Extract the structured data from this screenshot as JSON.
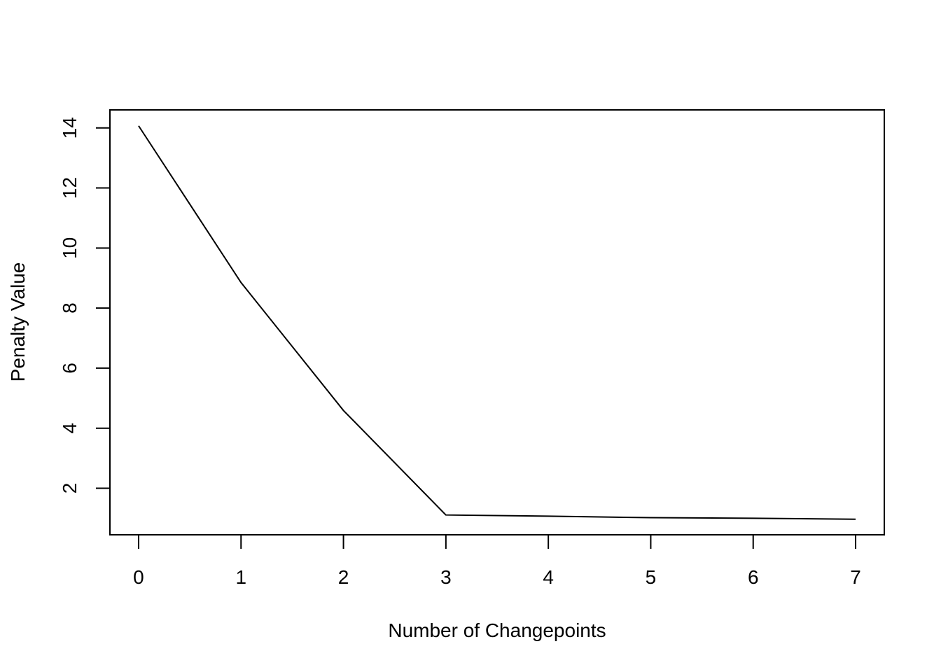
{
  "chart_data": {
    "type": "line",
    "x_label": "Number of Changepoints",
    "y_label": "Penalty Value",
    "x": [
      0,
      1,
      2,
      3,
      4,
      5,
      6,
      7
    ],
    "series": [
      {
        "color": "#000000",
        "values": [
          14.07,
          8.85,
          4.59,
          1.11,
          1.07,
          1.02,
          1.0,
          0.97
        ]
      }
    ],
    "xlim": [
      -0.28,
      7.28
    ],
    "ylim": [
      0.45,
      14.6
    ],
    "xticks": [
      0,
      1,
      2,
      3,
      4,
      5,
      6,
      7
    ],
    "yticks": [
      2,
      4,
      6,
      8,
      10,
      12,
      14
    ]
  }
}
